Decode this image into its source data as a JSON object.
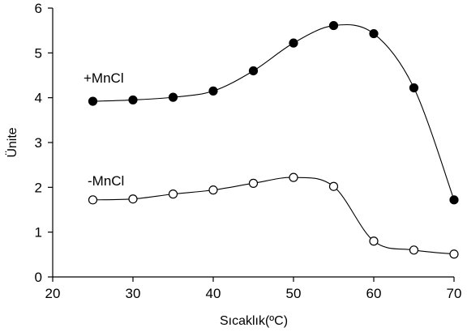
{
  "chart_data": {
    "type": "line",
    "xlabel": "Sıcaklık(ºC)",
    "ylabel": "Ünite",
    "xlim": [
      20,
      70
    ],
    "ylim": [
      0,
      6
    ],
    "xticks": [
      "20",
      "30",
      "40",
      "50",
      "60",
      "70"
    ],
    "yticks": [
      "0",
      "1",
      "2",
      "3",
      "4",
      "5",
      "6"
    ],
    "grid": false,
    "x": [
      25,
      30,
      35,
      40,
      45,
      50,
      55,
      60,
      65,
      70
    ],
    "series": [
      {
        "name": "+MnCl",
        "marker": "filled-circle",
        "values": [
          3.92,
          3.95,
          4.01,
          4.15,
          4.6,
          5.22,
          5.61,
          5.43,
          4.22,
          1.72
        ]
      },
      {
        "name": "-MnCl",
        "marker": "open-circle",
        "values": [
          1.72,
          1.74,
          1.85,
          1.94,
          2.09,
          2.22,
          2.02,
          0.8,
          0.6,
          0.51
        ]
      }
    ],
    "colors": {
      "line": "#000000",
      "marker_fill_filled": "#000000",
      "marker_fill_open": "#ffffff"
    }
  }
}
